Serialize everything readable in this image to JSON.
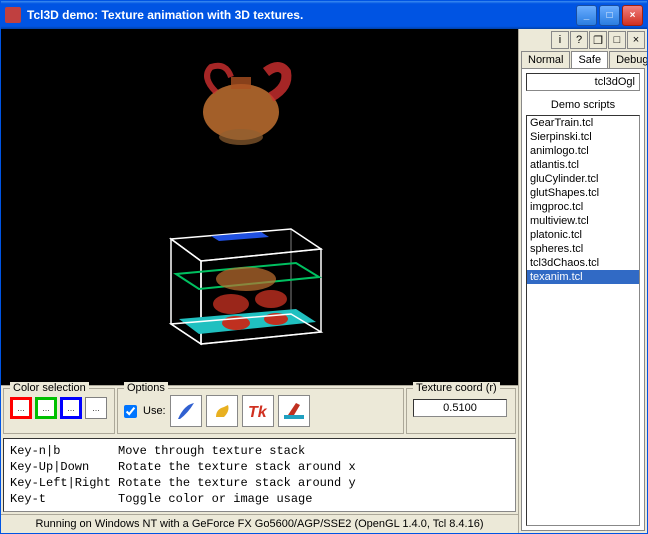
{
  "window": {
    "title": "Tcl3D demo: Texture animation with 3D textures."
  },
  "panels": {
    "color_selection": {
      "legend": "Color selection"
    },
    "options": {
      "legend": "Options",
      "use_label": "Use:",
      "use_checked": true
    },
    "texture_coord": {
      "legend": "Texture coord (r)",
      "value": "0.5100"
    }
  },
  "help": {
    "line1": "Key-n|b        Move through texture stack",
    "line2": "Key-Up|Down    Rotate the texture stack around x",
    "line3": "Key-Left|Right Rotate the texture stack around y",
    "line4": "Key-t          Toggle color or image usage"
  },
  "statusbar": {
    "text": "Running on Windows NT with a GeForce FX Go5600/AGP/SSE2  (OpenGL 1.4.0, Tcl 8.4.16)"
  },
  "right": {
    "tabs": {
      "normal": "Normal",
      "safe": "Safe",
      "debug": "Debug",
      "active": "Safe"
    },
    "field": "tcl3dOgl",
    "demo_label": "Demo scripts",
    "items": [
      "GearTrain.tcl",
      "Sierpinski.tcl",
      "animlogo.tcl",
      "atlantis.tcl",
      "gluCylinder.tcl",
      "glutShapes.tcl",
      "imgproc.tcl",
      "multiview.tcl",
      "platonic.tcl",
      "spheres.tcl",
      "tcl3dChaos.tcl",
      "texanim.tcl"
    ],
    "selected": "texanim.tcl"
  },
  "colors": {
    "titlebar_gradient": [
      "#3c8cf0",
      "#0054e3"
    ],
    "close_btn": "#d03020",
    "bg": "#ece9d8",
    "selection": "#316ac5",
    "viewport_bg": "#000000",
    "teapot_body": "#c07030",
    "teapot_accent": "#d03030",
    "cube_wire": "#ffffff",
    "slice_green": "#00c060",
    "slice_teal": "#20c0c0",
    "slice_blue": "#2050e0",
    "slice_red": "#c03020"
  }
}
